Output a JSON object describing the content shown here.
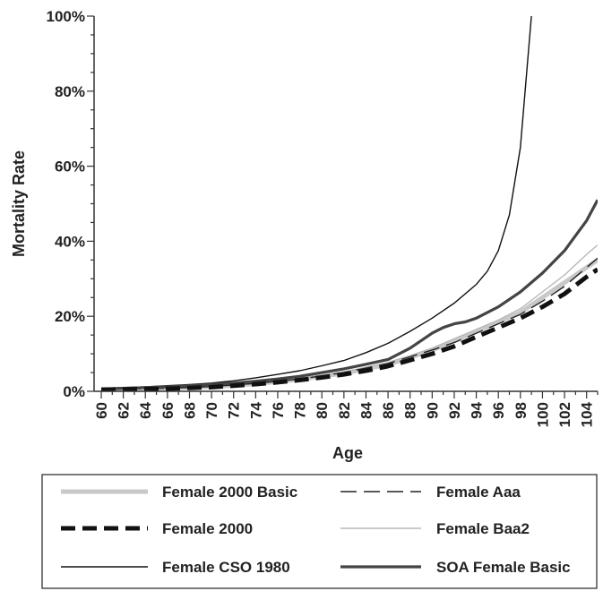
{
  "chart_data": {
    "type": "line",
    "title": "",
    "xlabel": "Age",
    "ylabel": "Mortality Rate",
    "xlim": [
      60,
      105
    ],
    "ylim": [
      0,
      100
    ],
    "x_ticks": [
      "60",
      "62",
      "64",
      "66",
      "68",
      "70",
      "72",
      "74",
      "76",
      "78",
      "80",
      "82",
      "84",
      "86",
      "88",
      "90",
      "92",
      "94",
      "96",
      "98",
      "100",
      "102",
      "104"
    ],
    "y_ticks": [
      "0%",
      "20%",
      "40%",
      "60%",
      "80%",
      "100%"
    ],
    "y_tick_values": [
      0,
      20,
      40,
      60,
      80,
      100
    ],
    "grid": false,
    "legend_position": "bottom",
    "series": [
      {
        "name": "Female 2000 Basic",
        "color": "#c8c8c8",
        "dash": "solid",
        "width": "heavy",
        "x": [
          60,
          62,
          64,
          66,
          68,
          70,
          72,
          74,
          76,
          78,
          80,
          82,
          84,
          86,
          88,
          90,
          92,
          94,
          96,
          98,
          100,
          102,
          104,
          105
        ],
        "y": [
          0.5,
          0.6,
          0.7,
          0.8,
          1.0,
          1.2,
          1.6,
          2.0,
          2.6,
          3.2,
          4.0,
          4.8,
          6.0,
          7.2,
          9.0,
          11.0,
          13.5,
          16.0,
          18.5,
          21.0,
          25.0,
          29.0,
          33.0,
          35.0
        ]
      },
      {
        "name": "Female Aaa",
        "color": "#222222",
        "dash": "long-dash",
        "width": "thin",
        "x": [
          60,
          62,
          64,
          66,
          68,
          70,
          72,
          74,
          76,
          78,
          80,
          82,
          84,
          86,
          88,
          90,
          92,
          94,
          96,
          98,
          100,
          102,
          104,
          105
        ],
        "y": [
          0.5,
          0.6,
          0.7,
          0.8,
          1.0,
          1.3,
          1.7,
          2.1,
          2.7,
          3.3,
          4.1,
          5.0,
          6.2,
          7.4,
          9.2,
          11.0,
          13.0,
          15.5,
          18.0,
          20.5,
          24.0,
          28.0,
          33.0,
          35.5
        ]
      },
      {
        "name": "Female 2000",
        "color": "#111111",
        "dash": "heavy-dash",
        "width": "heavy",
        "x": [
          60,
          62,
          64,
          66,
          68,
          70,
          72,
          74,
          76,
          78,
          80,
          82,
          84,
          86,
          88,
          90,
          92,
          94,
          96,
          98,
          100,
          102,
          104,
          105
        ],
        "y": [
          0.4,
          0.5,
          0.6,
          0.7,
          0.9,
          1.1,
          1.5,
          1.9,
          2.4,
          3.0,
          3.7,
          4.5,
          5.5,
          6.7,
          8.3,
          10.0,
          12.0,
          14.5,
          17.0,
          19.5,
          22.5,
          26.0,
          30.5,
          32.5
        ]
      },
      {
        "name": "Female Baa2",
        "color": "#b8b8b8",
        "dash": "solid",
        "width": "thin",
        "x": [
          60,
          62,
          64,
          66,
          68,
          70,
          72,
          74,
          76,
          78,
          80,
          82,
          84,
          86,
          88,
          90,
          92,
          94,
          96,
          98,
          100,
          102,
          104,
          105
        ],
        "y": [
          0.5,
          0.6,
          0.7,
          0.9,
          1.1,
          1.4,
          1.8,
          2.2,
          2.8,
          3.5,
          4.3,
          5.2,
          6.4,
          7.7,
          9.5,
          11.5,
          14.0,
          16.5,
          19.0,
          22.0,
          26.5,
          31.0,
          36.5,
          39.0
        ]
      },
      {
        "name": "Female CSO 1980",
        "color": "#111111",
        "dash": "solid",
        "width": "thin",
        "x": [
          60,
          62,
          64,
          66,
          68,
          70,
          72,
          74,
          76,
          78,
          80,
          82,
          84,
          86,
          88,
          90,
          92,
          94,
          95,
          96,
          97,
          98,
          99
        ],
        "y": [
          0.8,
          1.0,
          1.2,
          1.5,
          1.8,
          2.2,
          2.8,
          3.6,
          4.5,
          5.5,
          6.8,
          8.2,
          10.3,
          12.8,
          16.0,
          19.5,
          23.5,
          28.5,
          32.0,
          37.5,
          47.0,
          65.0,
          100.0
        ]
      },
      {
        "name": "SOA Female Basic",
        "color": "#444444",
        "dash": "solid",
        "width": "medium",
        "x": [
          60,
          62,
          64,
          66,
          68,
          70,
          72,
          74,
          76,
          78,
          80,
          82,
          84,
          86,
          88,
          90,
          91,
          92,
          93,
          94,
          96,
          98,
          100,
          102,
          104,
          105
        ],
        "y": [
          0.6,
          0.8,
          1.0,
          1.2,
          1.5,
          1.8,
          2.2,
          2.7,
          3.3,
          4.0,
          5.0,
          6.0,
          7.2,
          8.5,
          11.5,
          15.5,
          17.0,
          18.0,
          18.5,
          19.5,
          22.5,
          26.5,
          31.5,
          37.5,
          45.5,
          51.0
        ]
      }
    ],
    "legend_layout": [
      [
        "Female 2000 Basic",
        "Female Aaa"
      ],
      [
        "Female 2000",
        "Female Baa2"
      ],
      [
        "Female CSO 1980",
        "SOA Female Basic"
      ]
    ]
  }
}
